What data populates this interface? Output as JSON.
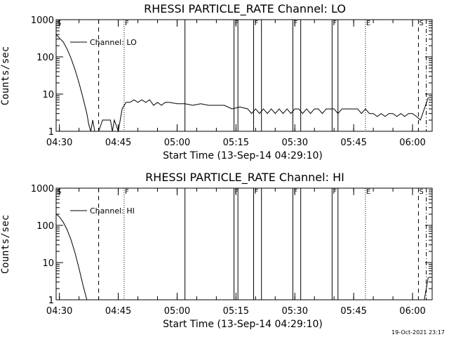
{
  "footer_timestamp": "19-Oct-2021 23:17",
  "colors": {
    "background": "#ffffff",
    "foreground": "#000000"
  },
  "chart_data": [
    {
      "type": "line",
      "title": "RHESSI PARTICLE_RATE Channel: LO",
      "xlabel": "Start Time (13-Sep-14 04:29:10)",
      "ylabel": "Counts/sec",
      "yscale": "log",
      "ylim": [
        1,
        1000
      ],
      "xlim": [
        "04:29:10",
        "06:05:00"
      ],
      "x_ticks": [
        "04:30",
        "04:45",
        "05:00",
        "05:15",
        "05:30",
        "05:45",
        "06:00"
      ],
      "y_ticks": [
        "1",
        "10",
        "100",
        "1000"
      ],
      "grid": false,
      "legend_position": "top-left",
      "series": [
        {
          "name": "Channel: LO",
          "points": [
            [
              "04:29:10",
              400
            ],
            [
              "04:30:00",
              320
            ],
            [
              "04:31:00",
              250
            ],
            [
              "04:32:00",
              160
            ],
            [
              "04:33:00",
              90
            ],
            [
              "04:34:00",
              45
            ],
            [
              "04:35:00",
              20
            ],
            [
              "04:36:00",
              8
            ],
            [
              "04:37:00",
              3
            ],
            [
              "04:37:30",
              1.5
            ],
            [
              "04:38:00",
              1
            ],
            [
              "04:38:30",
              2
            ],
            [
              "04:39:00",
              1
            ],
            [
              "04:40:00",
              1
            ],
            [
              "04:41:00",
              2
            ],
            [
              "04:42:00",
              2
            ],
            [
              "04:43:00",
              2
            ],
            [
              "04:43:30",
              1
            ],
            [
              "04:44:00",
              2
            ],
            [
              "04:45:00",
              1
            ],
            [
              "04:46:00",
              4
            ],
            [
              "04:47:00",
              6
            ],
            [
              "04:48:00",
              6
            ],
            [
              "04:49:00",
              7
            ],
            [
              "04:50:00",
              6
            ],
            [
              "04:51:00",
              7
            ],
            [
              "04:52:00",
              6
            ],
            [
              "04:53:00",
              7
            ],
            [
              "04:54:00",
              5
            ],
            [
              "04:55:00",
              6
            ],
            [
              "04:56:00",
              5
            ],
            [
              "04:57:00",
              6
            ],
            [
              "04:58:00",
              6
            ],
            [
              "05:00:00",
              5.5
            ],
            [
              "05:02:00",
              5.5
            ],
            [
              "05:04:00",
              5
            ],
            [
              "05:06:00",
              5.5
            ],
            [
              "05:08:00",
              5
            ],
            [
              "05:10:00",
              5
            ],
            [
              "05:12:00",
              5
            ],
            [
              "05:14:00",
              4
            ],
            [
              "05:16:00",
              4.5
            ],
            [
              "05:18:00",
              4
            ],
            [
              "05:19:00",
              3
            ],
            [
              "05:20:00",
              4
            ],
            [
              "05:21:00",
              3
            ],
            [
              "05:22:00",
              4
            ],
            [
              "05:23:00",
              3
            ],
            [
              "05:24:00",
              4
            ],
            [
              "05:25:00",
              3
            ],
            [
              "05:26:00",
              4
            ],
            [
              "05:27:00",
              3
            ],
            [
              "05:28:00",
              4
            ],
            [
              "05:29:00",
              3
            ],
            [
              "05:30:00",
              4
            ],
            [
              "05:31:00",
              4
            ],
            [
              "05:32:00",
              3
            ],
            [
              "05:33:00",
              4
            ],
            [
              "05:34:00",
              3
            ],
            [
              "05:35:00",
              4
            ],
            [
              "05:36:00",
              4
            ],
            [
              "05:37:00",
              3
            ],
            [
              "05:38:00",
              4
            ],
            [
              "05:39:00",
              4
            ],
            [
              "05:40:00",
              4
            ],
            [
              "05:41:00",
              3
            ],
            [
              "05:42:00",
              4
            ],
            [
              "05:44:00",
              4
            ],
            [
              "05:46:00",
              4
            ],
            [
              "05:47:00",
              3
            ],
            [
              "05:48:00",
              4
            ],
            [
              "05:49:00",
              3
            ],
            [
              "05:50:00",
              3
            ],
            [
              "05:51:00",
              2.5
            ],
            [
              "05:52:00",
              3
            ],
            [
              "05:53:00",
              2.5
            ],
            [
              "05:54:00",
              3
            ],
            [
              "05:55:00",
              3
            ],
            [
              "05:56:00",
              2.5
            ],
            [
              "05:57:00",
              3
            ],
            [
              "05:58:00",
              2.5
            ],
            [
              "05:59:00",
              3
            ],
            [
              "06:00:00",
              3
            ],
            [
              "06:01:00",
              2.5
            ],
            [
              "06:02:00",
              2
            ],
            [
              "06:03:00",
              4
            ],
            [
              "06:04:00",
              8
            ]
          ]
        }
      ],
      "markers": [
        {
          "time": "04:29:10",
          "label": "S",
          "style": "solid"
        },
        {
          "time": "04:40:00",
          "label": "",
          "style": "dashed"
        },
        {
          "time": "04:46:30",
          "label": "F",
          "style": "dotted"
        },
        {
          "time": "05:02:00",
          "label": "",
          "style": "solid"
        },
        {
          "time": "05:14:30",
          "label": "F",
          "style": "solid"
        },
        {
          "time": "05:15:30",
          "label": "",
          "style": "solid"
        },
        {
          "time": "05:19:30",
          "label": "F",
          "style": "solid"
        },
        {
          "time": "05:21:30",
          "label": "",
          "style": "solid"
        },
        {
          "time": "05:29:30",
          "label": "F",
          "style": "solid"
        },
        {
          "time": "05:31:30",
          "label": "",
          "style": "solid"
        },
        {
          "time": "05:39:30",
          "label": "F",
          "style": "solid"
        },
        {
          "time": "05:41:00",
          "label": "",
          "style": "solid"
        },
        {
          "time": "05:48:00",
          "label": "E",
          "style": "dotted"
        },
        {
          "time": "06:01:30",
          "label": "S",
          "style": "dashed"
        },
        {
          "time": "06:03:30",
          "label": "",
          "style": "dashdot"
        }
      ]
    },
    {
      "type": "line",
      "title": "RHESSI PARTICLE_RATE Channel: HI",
      "xlabel": "Start Time (13-Sep-14 04:29:10)",
      "ylabel": "Counts/sec",
      "yscale": "log",
      "ylim": [
        1,
        1000
      ],
      "xlim": [
        "04:29:10",
        "06:05:00"
      ],
      "x_ticks": [
        "04:30",
        "04:45",
        "05:00",
        "05:15",
        "05:30",
        "05:45",
        "06:00"
      ],
      "y_ticks": [
        "1",
        "10",
        "100",
        "1000"
      ],
      "grid": false,
      "legend_position": "top-left",
      "series": [
        {
          "name": "Channel: HI",
          "points": [
            [
              "04:29:10",
              200
            ],
            [
              "04:30:00",
              170
            ],
            [
              "04:31:00",
              120
            ],
            [
              "04:32:00",
              75
            ],
            [
              "04:33:00",
              40
            ],
            [
              "04:34:00",
              18
            ],
            [
              "04:35:00",
              7
            ],
            [
              "04:36:00",
              2.5
            ],
            [
              "04:37:00",
              1
            ],
            [
              "06:03:00",
              1
            ],
            [
              "06:04:00",
              4
            ]
          ]
        }
      ],
      "markers": [
        {
          "time": "04:29:10",
          "label": "S",
          "style": "solid"
        },
        {
          "time": "04:40:00",
          "label": "",
          "style": "dashed"
        },
        {
          "time": "04:46:30",
          "label": "F",
          "style": "dotted"
        },
        {
          "time": "05:02:00",
          "label": "",
          "style": "solid"
        },
        {
          "time": "05:14:30",
          "label": "F",
          "style": "solid"
        },
        {
          "time": "05:15:30",
          "label": "",
          "style": "solid"
        },
        {
          "time": "05:19:30",
          "label": "F",
          "style": "solid"
        },
        {
          "time": "05:21:30",
          "label": "",
          "style": "solid"
        },
        {
          "time": "05:29:30",
          "label": "F",
          "style": "solid"
        },
        {
          "time": "05:31:30",
          "label": "",
          "style": "solid"
        },
        {
          "time": "05:39:30",
          "label": "F",
          "style": "solid"
        },
        {
          "time": "05:41:00",
          "label": "",
          "style": "solid"
        },
        {
          "time": "05:48:00",
          "label": "E",
          "style": "dotted"
        },
        {
          "time": "06:01:30",
          "label": "S",
          "style": "dashed"
        },
        {
          "time": "06:03:30",
          "label": "",
          "style": "dashdot"
        }
      ]
    }
  ]
}
